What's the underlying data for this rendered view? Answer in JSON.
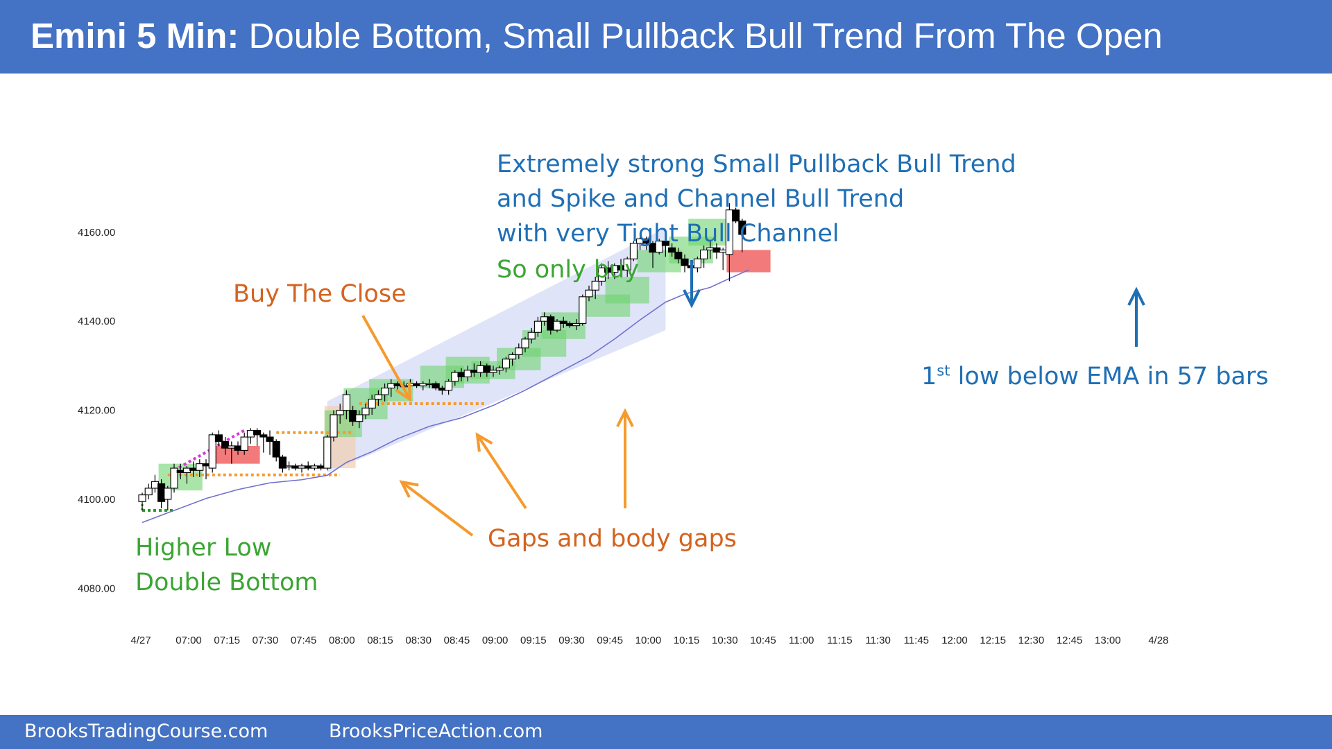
{
  "header": {
    "title_bold": "Emini 5 Min:",
    "title_rest": "Double Bottom, Small Pullback Bull Trend From The Open",
    "background": "#4472c4"
  },
  "footer": {
    "left": "BrooksTradingCourse.com",
    "right": "BrooksPriceAction.com"
  },
  "annotations": {
    "strong_trend_1": "Extremely strong Small Pullback Bull Trend",
    "strong_trend_2": "and Spike and Channel Bull Trend",
    "strong_trend_3": "with very Tight Bull Channel",
    "only_buy": "So only buy",
    "buy_the_close": "Buy The Close",
    "gaps": "Gaps and body gaps",
    "higher_low": "Higher Low",
    "double_bottom": "Double Bottom",
    "first_low_prefix": "1",
    "first_low_sup": "st",
    "first_low_rest": " low below EMA in 57 bars"
  },
  "colors": {
    "blue_text": "#1f6fb5",
    "green_text": "#3aa632",
    "orange_text": "#d4631f",
    "orange_arrow": "#f59a2d",
    "ema": "#7070d0",
    "channel": "#c9d2f4",
    "green_box": "#6fd36f",
    "red_box": "#f26b6b",
    "magenta": "#d63ad6"
  },
  "chart_data": {
    "type": "candlestick",
    "title": "Emini 5 Min",
    "y_axis": {
      "ticks": [
        "4080.00",
        "4100.00",
        "4120.00",
        "4140.00",
        "4160.00"
      ],
      "ylim": [
        4076,
        4170
      ]
    },
    "x_axis": {
      "ticks": [
        "4/27",
        "07:00",
        "07:15",
        "07:30",
        "07:45",
        "08:00",
        "08:15",
        "08:30",
        "08:45",
        "09:00",
        "09:15",
        "09:30",
        "09:45",
        "10:00",
        "10:15",
        "10:30",
        "10:45",
        "11:00",
        "11:15",
        "11:30",
        "11:45",
        "12:00",
        "12:15",
        "12:30",
        "12:45",
        "13:00",
        "4/28"
      ]
    },
    "bar_minutes": 5,
    "first_bar_time": "06:35",
    "ohlc": [
      [
        4099.5,
        4101.5,
        4097.5,
        4101
      ],
      [
        4101,
        4103.5,
        4100,
        4102.5
      ],
      [
        4102.5,
        4105.5,
        4101.5,
        4104
      ],
      [
        4103.5,
        4104.5,
        4098,
        4099.5
      ],
      [
        4100,
        4103,
        4097.5,
        4102.5
      ],
      [
        4102.5,
        4108,
        4101.5,
        4107
      ],
      [
        4106.5,
        4108,
        4104.5,
        4106
      ],
      [
        4106,
        4107.5,
        4103.5,
        4107
      ],
      [
        4107,
        4108.5,
        4105,
        4106.5
      ],
      [
        4106.5,
        4109,
        4105,
        4108
      ],
      [
        4108,
        4109,
        4104.5,
        4107.5
      ],
      [
        4107,
        4115,
        4106,
        4114.5
      ],
      [
        4114.5,
        4115.5,
        4112,
        4113
      ],
      [
        4113,
        4114,
        4110,
        4111.5
      ],
      [
        4111.5,
        4113,
        4108,
        4112
      ],
      [
        4112,
        4113,
        4110,
        4111
      ],
      [
        4111,
        4115,
        4110,
        4114
      ],
      [
        4114,
        4116,
        4112.5,
        4115.5
      ],
      [
        4115.5,
        4116,
        4112,
        4114.5
      ],
      [
        4114.5,
        4115,
        4110.5,
        4114
      ],
      [
        4114,
        4115.5,
        4110,
        4113
      ],
      [
        4113,
        4113.5,
        4108.5,
        4109.5
      ],
      [
        4109.5,
        4110,
        4106,
        4107
      ],
      [
        4107.5,
        4108.5,
        4106.5,
        4107.5
      ],
      [
        4107.5,
        4108,
        4106.5,
        4107
      ],
      [
        4107,
        4108,
        4106,
        4107.5
      ],
      [
        4107.5,
        4108.5,
        4106.5,
        4107
      ],
      [
        4107,
        4108,
        4106.5,
        4107.5
      ],
      [
        4107.5,
        4108,
        4106.5,
        4107
      ],
      [
        4107,
        4114.5,
        4106.5,
        4114
      ],
      [
        4114,
        4120,
        4113,
        4119
      ],
      [
        4119,
        4121.5,
        4117,
        4120
      ],
      [
        4120,
        4124.5,
        4118,
        4123.5
      ],
      [
        4120,
        4121,
        4116.5,
        4117.5
      ],
      [
        4117.5,
        4120,
        4116,
        4119
      ],
      [
        4119,
        4121.5,
        4118,
        4120.5
      ],
      [
        4120.5,
        4123.5,
        4119,
        4122.5
      ],
      [
        4122.5,
        4124.5,
        4121,
        4123.5
      ],
      [
        4123.5,
        4126,
        4122,
        4125
      ],
      [
        4125,
        4127,
        4123,
        4126
      ],
      [
        4126,
        4126.5,
        4124,
        4125.5
      ],
      [
        4125.5,
        4126.5,
        4124.5,
        4125.5
      ],
      [
        4125.5,
        4127,
        4124.5,
        4126
      ],
      [
        4126,
        4126.5,
        4125,
        4125.5
      ],
      [
        4125.5,
        4126.5,
        4124.5,
        4126
      ],
      [
        4126,
        4127,
        4125,
        4126
      ],
      [
        4126,
        4126.5,
        4124.5,
        4125
      ],
      [
        4125,
        4125.5,
        4123.5,
        4124.5
      ],
      [
        4124.5,
        4127,
        4123.5,
        4126.5
      ],
      [
        4126.5,
        4129,
        4125.5,
        4128.5
      ],
      [
        4128.5,
        4129.5,
        4126.5,
        4127.5
      ],
      [
        4127.5,
        4130,
        4126.5,
        4129
      ],
      [
        4129,
        4130.5,
        4127.5,
        4128.5
      ],
      [
        4128.5,
        4131,
        4127.5,
        4130
      ],
      [
        4130,
        4130.5,
        4127.5,
        4128.5
      ],
      [
        4128.5,
        4130,
        4127.5,
        4129
      ],
      [
        4129,
        4130,
        4128,
        4129.5
      ],
      [
        4129.5,
        4132,
        4128.5,
        4131.5
      ],
      [
        4131.5,
        4133,
        4130,
        4132.5
      ],
      [
        4132.5,
        4135,
        4131.5,
        4134
      ],
      [
        4134,
        4136.5,
        4133,
        4136
      ],
      [
        4136,
        4138.5,
        4135,
        4137.5
      ],
      [
        4137.5,
        4141,
        4136.5,
        4140
      ],
      [
        4140,
        4142,
        4139,
        4141
      ],
      [
        4141,
        4141.5,
        4137,
        4138
      ],
      [
        4138,
        4140.5,
        4137.5,
        4140
      ],
      [
        4140,
        4141,
        4138.5,
        4139.5
      ],
      [
        4139.5,
        4140,
        4138.5,
        4139
      ],
      [
        4139,
        4140.5,
        4138,
        4139.5
      ],
      [
        4139.5,
        4146,
        4139,
        4145.5
      ],
      [
        4145.5,
        4148,
        4144.5,
        4147
      ],
      [
        4147,
        4150,
        4145,
        4149
      ],
      [
        4149,
        4153,
        4148,
        4152
      ],
      [
        4152,
        4153.5,
        4149.5,
        4151
      ],
      [
        4151,
        4153,
        4149.5,
        4152.5
      ],
      [
        4152.5,
        4154,
        4150.5,
        4151.5
      ],
      [
        4151.5,
        4154.5,
        4150,
        4154
      ],
      [
        4154,
        4158,
        4153.5,
        4157.5
      ],
      [
        4157.5,
        4159,
        4156,
        4158.5
      ],
      [
        4158.5,
        4159,
        4156,
        4157.5
      ],
      [
        4157.5,
        4158,
        4152,
        4155.5
      ],
      [
        4155.5,
        4158.5,
        4155,
        4158
      ],
      [
        4158,
        4158.5,
        4154.5,
        4157
      ],
      [
        4156.5,
        4157.5,
        4154.5,
        4155.5
      ],
      [
        4155.5,
        4156.5,
        4153,
        4154
      ],
      [
        4154,
        4155,
        4151,
        4152.5
      ],
      [
        4152.5,
        4153.5,
        4151,
        4152
      ],
      [
        4152,
        4154.5,
        4151,
        4154
      ],
      [
        4154,
        4157,
        4152,
        4156
      ],
      [
        4156,
        4158,
        4154,
        4156.5
      ],
      [
        4156.5,
        4157.5,
        4154,
        4155.5
      ],
      [
        4155.5,
        4156.5,
        4151.5,
        4156
      ],
      [
        4155,
        4166.5,
        4149,
        4165
      ],
      [
        4165,
        4165.5,
        4162,
        4162.5
      ],
      [
        4162.5,
        4163,
        4155.5,
        4159.5
      ]
    ],
    "ema_20": [
      [
        0,
        4094.8
      ],
      [
        5,
        4097.5
      ],
      [
        10,
        4100.2
      ],
      [
        15,
        4102.2
      ],
      [
        20,
        4103.7
      ],
      [
        25,
        4104.4
      ],
      [
        29,
        4105.4
      ],
      [
        32,
        4108.3
      ],
      [
        36,
        4110.7
      ],
      [
        40,
        4113.6
      ],
      [
        45,
        4116.4
      ],
      [
        50,
        4118.3
      ],
      [
        55,
        4121.1
      ],
      [
        60,
        4124.5
      ],
      [
        65,
        4128.3
      ],
      [
        70,
        4132.1
      ],
      [
        74,
        4136.0
      ],
      [
        78,
        4140.3
      ],
      [
        82,
        4144.3
      ],
      [
        85,
        4146.1
      ],
      [
        89,
        4147.6
      ],
      [
        92,
        4149.6
      ],
      [
        95,
        4151.5
      ]
    ],
    "zones": {
      "channel": [
        [
          29,
          4122
        ],
        [
          82,
          4161
        ],
        [
          82,
          4138
        ],
        [
          29,
          4106
        ]
      ],
      "green_boxes": [
        [
          3,
          4108,
          9,
          4102
        ],
        [
          29,
          4120,
          34,
          4114
        ],
        [
          32,
          4125,
          38,
          4118
        ],
        [
          36,
          4127,
          42,
          4122
        ],
        [
          44,
          4130,
          50,
          4125
        ],
        [
          48,
          4132,
          54,
          4126
        ],
        [
          52,
          4131,
          58,
          4127
        ],
        [
          56,
          4134,
          62,
          4129
        ],
        [
          60,
          4138,
          66,
          4132
        ],
        [
          63,
          4142,
          69,
          4136
        ],
        [
          70,
          4146,
          76,
          4141
        ],
        [
          73,
          4150,
          79,
          4144
        ],
        [
          78,
          4156,
          84,
          4151
        ],
        [
          83,
          4159,
          89,
          4153
        ],
        [
          86,
          4163,
          92,
          4157
        ]
      ],
      "red_boxes": [
        [
          12,
          4112,
          18,
          4108
        ],
        [
          92,
          4156,
          98,
          4151
        ]
      ],
      "tan_box": [
        29,
        4121,
        33,
        4107
      ]
    },
    "levels": {
      "orange_high_line": [
        [
          21,
          4115
        ],
        [
          33,
          4115
        ]
      ],
      "orange_low_line": [
        [
          4,
          4105.5
        ],
        [
          31,
          4105.5
        ]
      ],
      "orange_gap_line": [
        [
          34,
          4121.5
        ],
        [
          54,
          4121.5
        ]
      ],
      "green_double_bottom": [
        [
          0,
          4097.5
        ],
        [
          5,
          4097.5
        ]
      ],
      "magenta_trendline": [
        [
          5,
          4106.5
        ],
        [
          16,
          4115.5
        ]
      ]
    }
  }
}
